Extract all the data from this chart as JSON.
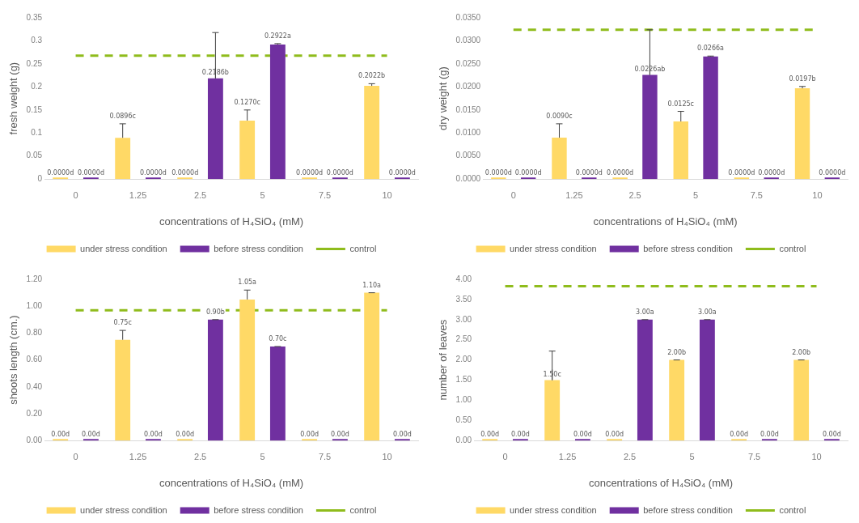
{
  "chart_data": [
    {
      "type": "bar",
      "xlabel": "concentrations of H₄SiO₄ (mM)",
      "ylabel": "fresh weight (g)",
      "categories": [
        "0",
        "1.25",
        "2.5",
        "5",
        "7.5",
        "10"
      ],
      "ylim": [
        0,
        0.35
      ],
      "yticks": [
        0,
        0.05,
        0.1,
        0.15,
        0.2,
        0.25,
        0.3,
        0.35
      ],
      "grid": false,
      "legend": "bottom",
      "series": [
        {
          "name": "under stress condition",
          "color": "#ffd966",
          "values": [
            0,
            0.0896,
            0,
            0.127,
            0,
            0.2022
          ],
          "errors": [
            null,
            [
              0.0896,
              0.12
            ],
            null,
            [
              0.127,
              0.15
            ],
            null,
            [
              0.2022,
              0.207
            ]
          ],
          "value_labels": [
            "0.0000d",
            "0.0896c",
            "0.0000d",
            "0.1270c",
            "0.0000d",
            "0.2022b"
          ]
        },
        {
          "name": "before stress condition",
          "color": "#7030a0",
          "values": [
            0,
            0,
            0.2186,
            0.2922,
            0,
            0
          ],
          "errors": [
            null,
            null,
            [
              0.2186,
              0.318
            ],
            [
              0.2922,
              0.294
            ],
            null,
            null
          ],
          "value_labels": [
            "0.0000d",
            "0.0000d",
            "0.2186b",
            "0.2922a",
            "0.0000d",
            "0.0000d"
          ]
        }
      ],
      "ref_lines": [
        {
          "axis": "y",
          "value": 0.268,
          "label": "control",
          "color": "#8fbc1c",
          "line_style": "dashed"
        }
      ]
    },
    {
      "type": "bar",
      "xlabel": "concentrations of H₄SiO₄ (mM)",
      "ylabel": "dry weight (g)",
      "categories": [
        "0",
        "1.25",
        "2.5",
        "5",
        "7.5",
        "10"
      ],
      "ylim": [
        0,
        0.035
      ],
      "yticks": [
        {
          "value": 0,
          "label": "0.0000"
        },
        {
          "value": 0.005,
          "label": "0.0050"
        },
        {
          "value": 0.01,
          "label": "0.0100"
        },
        {
          "value": 0.015,
          "label": "0.0150"
        },
        {
          "value": 0.02,
          "label": "0.0200"
        },
        {
          "value": 0.025,
          "label": "0.0250"
        },
        {
          "value": 0.03,
          "label": "0.0300"
        },
        {
          "value": 0.035,
          "label": "0.0350"
        }
      ],
      "grid": false,
      "legend": "bottom",
      "series": [
        {
          "name": "under stress condition",
          "color": "#ffd966",
          "values": [
            0,
            0.009,
            0,
            0.0125,
            0,
            0.0197
          ],
          "errors": [
            null,
            [
              0.009,
              0.012
            ],
            null,
            [
              0.0125,
              0.0147
            ],
            null,
            [
              0.0197,
              0.0201
            ]
          ],
          "value_labels": [
            "0.0000d",
            "0.0090c",
            "0.0000d",
            "0.0125c",
            "0.0000d",
            "0.0197b"
          ]
        },
        {
          "name": "before stress condition",
          "color": "#7030a0",
          "values": [
            0,
            0,
            0.0226,
            0.0266,
            0,
            0
          ],
          "errors": [
            null,
            null,
            [
              0.0226,
              0.0324
            ],
            [
              0.0266,
              0.0267
            ],
            null,
            null
          ],
          "value_labels": [
            "0.0000d",
            "0.0000d",
            "0.0226ab",
            "0.0266a",
            "0.0000d",
            "0.0000d"
          ]
        }
      ],
      "ref_lines": [
        {
          "axis": "y",
          "value": 0.0324,
          "label": "control",
          "color": "#8fbc1c",
          "line_style": "dashed"
        }
      ]
    },
    {
      "type": "bar",
      "xlabel": "concentrations of H₄SiO₄ (mM)",
      "ylabel": "shoots length (cm.)",
      "categories": [
        "0",
        "1.25",
        "2.5",
        "5",
        "7.5",
        "10"
      ],
      "ylim": [
        0,
        1.2
      ],
      "yticks": [
        {
          "value": 0,
          "label": "0.00"
        },
        {
          "value": 0.2,
          "label": "0.20"
        },
        {
          "value": 0.4,
          "label": "0.40"
        },
        {
          "value": 0.6,
          "label": "0.60"
        },
        {
          "value": 0.8,
          "label": "0.80"
        },
        {
          "value": 1,
          "label": "1.00"
        },
        {
          "value": 1.2,
          "label": "1.20"
        }
      ],
      "grid": false,
      "legend": "bottom",
      "series": [
        {
          "name": "under stress condition",
          "color": "#ffd966",
          "values": [
            0,
            0.75,
            0,
            1.05,
            0,
            1.1
          ],
          "errors": [
            null,
            [
              0.75,
              0.82
            ],
            null,
            [
              1.05,
              1.12
            ],
            null,
            [
              1.1,
              1.1
            ]
          ],
          "value_labels": [
            "0.00d",
            "0.75c",
            "0.00d",
            "1.05a",
            "0.00d",
            "1.10a"
          ]
        },
        {
          "name": "before stress condition",
          "color": "#7030a0",
          "values": [
            0,
            0,
            0.9,
            0.7,
            0,
            0
          ],
          "errors": [
            null,
            null,
            [
              0.9,
              0.9
            ],
            [
              0.7,
              0.7
            ],
            null,
            null
          ],
          "value_labels": [
            "0.00d",
            "0.00d",
            "0.90b",
            "0.70c",
            "0.00d",
            "0.00d"
          ]
        }
      ],
      "ref_lines": [
        {
          "axis": "y",
          "value": 0.97,
          "label": "control",
          "color": "#8fbc1c",
          "line_style": "dashed"
        }
      ]
    },
    {
      "type": "bar",
      "xlabel": "concentrations of H₄SiO₄ (mM)",
      "ylabel": "number of leaves",
      "categories": [
        "0",
        "1.25",
        "2.5",
        "5",
        "7.5",
        "10"
      ],
      "ylim": [
        0,
        4
      ],
      "yticks": [
        {
          "value": 0,
          "label": "0.00"
        },
        {
          "value": 0.5,
          "label": "0.50"
        },
        {
          "value": 1,
          "label": "1.00"
        },
        {
          "value": 1.5,
          "label": "1.50"
        },
        {
          "value": 2,
          "label": "2.00"
        },
        {
          "value": 2.5,
          "label": "2.50"
        },
        {
          "value": 3,
          "label": "3.00"
        },
        {
          "value": 3.5,
          "label": "3.50"
        },
        {
          "value": 4,
          "label": "4.00"
        }
      ],
      "grid": false,
      "legend": "bottom",
      "series": [
        {
          "name": "under stress condition",
          "color": "#ffd966",
          "values": [
            0,
            1.5,
            0,
            2,
            0,
            2
          ],
          "errors": [
            null,
            [
              1.5,
              2.22
            ],
            null,
            [
              2,
              2
            ],
            null,
            [
              2,
              2
            ]
          ],
          "value_labels": [
            "0.00d",
            "1.50c",
            "0.00d",
            "2.00b",
            "0.00d",
            "2.00b"
          ]
        },
        {
          "name": "before stress condition",
          "color": "#7030a0",
          "values": [
            0,
            0,
            3,
            3,
            0,
            0
          ],
          "errors": [
            null,
            null,
            [
              3,
              3
            ],
            [
              3,
              3
            ],
            null,
            null
          ],
          "value_labels": [
            "0.00d",
            "0.00d",
            "3.00a",
            "3.00a",
            "0.00d",
            "0.00d"
          ]
        }
      ],
      "ref_lines": [
        {
          "axis": "y",
          "value": 3.83,
          "label": "control",
          "color": "#8fbc1c",
          "line_style": "dashed"
        }
      ]
    }
  ]
}
